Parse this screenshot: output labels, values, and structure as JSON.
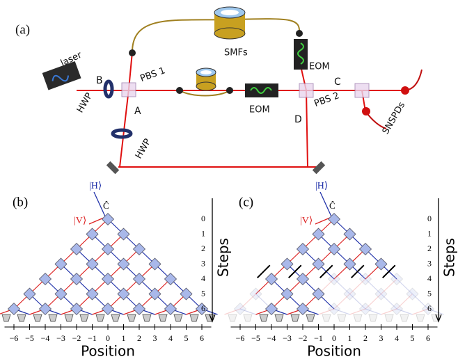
{
  "panel_a": {
    "label": "(a)",
    "laser": "laser",
    "b": "B",
    "hwp_1": "HWP",
    "pbs_1": "PBS 1",
    "a": "A",
    "hwp_2": "HWP",
    "smfs": "SMFs",
    "eom_1": "EOM",
    "eom_2": "EOM",
    "c": "C",
    "pbs_2": "PBS 2",
    "d": "D",
    "snspds": "SNSPDs"
  },
  "panel_b": {
    "label": "(b)",
    "input_h": "|H⟩",
    "coin": "Ĉ",
    "input_v": "|V⟩",
    "steps_title": "Steps",
    "steps": [
      "0",
      "1",
      "2",
      "3",
      "4",
      "5",
      "6"
    ],
    "positions": [
      "−6",
      "−5",
      "−4",
      "−3",
      "−2",
      "−1",
      "0",
      "1",
      "2",
      "3",
      "4",
      "5",
      "6"
    ],
    "position_title": "Position"
  },
  "panel_c": {
    "label": "(c)",
    "input_h": "|H⟩",
    "coin": "Ĉ",
    "input_v": "|V⟩",
    "steps_title": "Steps",
    "steps": [
      "0",
      "1",
      "2",
      "3",
      "4",
      "5",
      "6"
    ],
    "positions": [
      "−6",
      "−5",
      "−4",
      "−3",
      "−2",
      "−1",
      "0",
      "1",
      "2",
      "3",
      "4",
      "5",
      "6"
    ],
    "position_title": "Position"
  }
}
